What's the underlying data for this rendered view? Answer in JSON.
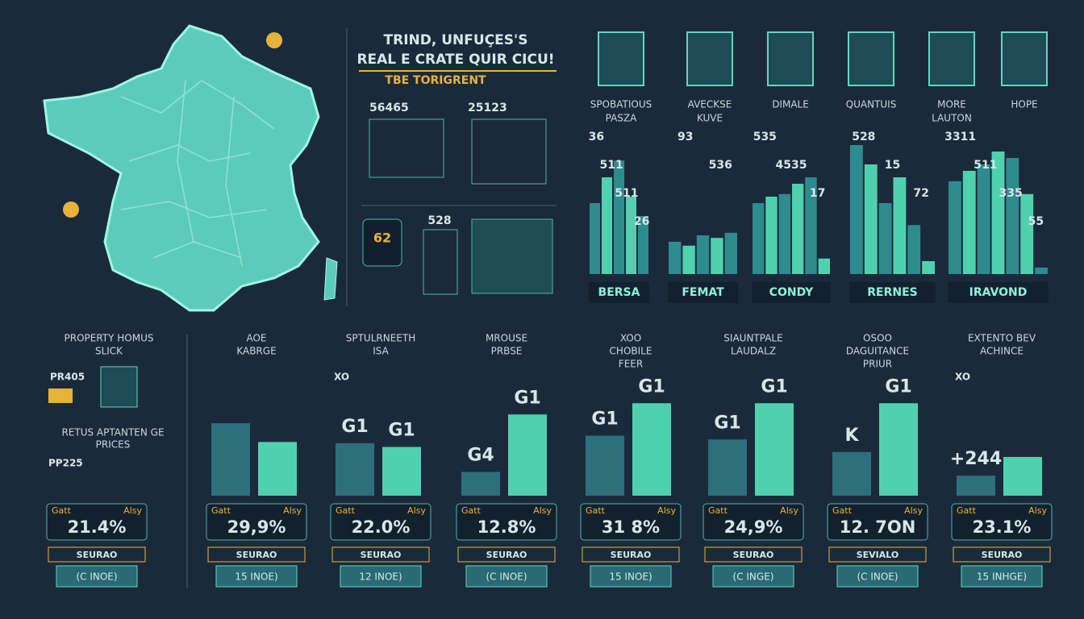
{
  "header": {
    "title_lines": [
      "TRIND, UNFUÇES'S",
      "REAL E CRATE QUIR CICU!"
    ],
    "subtitle": "TBE TORIGRENT"
  },
  "stats": [
    "56465",
    "25123",
    "62",
    "528"
  ],
  "icon_labels": [
    [
      "SPOBATIOUS",
      "PASZA"
    ],
    [
      "AVECKSE",
      "KUVE"
    ],
    [
      "DIMALE"
    ],
    [
      "QUANTUIS"
    ],
    [
      "MORE",
      "LAUTON"
    ],
    [
      "HOPE"
    ]
  ],
  "top_charts": [
    {
      "name": "BERSA",
      "values": [
        55,
        75,
        88,
        60,
        45
      ],
      "annotations": [
        "36",
        "511",
        "511",
        "26"
      ]
    },
    {
      "name": "FEMAT",
      "values": [
        25,
        22,
        30,
        28,
        32
      ],
      "annotations": [
        "93",
        "536"
      ]
    },
    {
      "name": "CONDY",
      "values": [
        55,
        60,
        62,
        70,
        75,
        12
      ],
      "annotations": [
        "535",
        "4535",
        "17"
      ]
    },
    {
      "name": "RERNES",
      "values": [
        100,
        85,
        55,
        75,
        38,
        10
      ],
      "annotations": [
        "528",
        "15",
        "72"
      ]
    },
    {
      "name": "IRAVOND",
      "values": [
        72,
        80,
        85,
        95,
        90,
        62,
        5
      ],
      "annotations": [
        "3311",
        "511",
        "335",
        "55"
      ]
    }
  ],
  "panels": [
    {
      "title": [
        "PROPERTY HOMUS",
        "SLICK"
      ],
      "tag": "PR405",
      "sub": [
        "RETUS APTANTEN GE",
        "PRICES"
      ],
      "sub_tag": "PP225",
      "bar_labels": [],
      "bars": [],
      "left": "Gatt",
      "right": "Alsy",
      "rate": "21.4%",
      "caption": "SEURAO",
      "button": "(C INOE)"
    },
    {
      "title": [
        "AOE",
        "KABRGE"
      ],
      "bar_labels": [],
      "bars": [
        58,
        43
      ],
      "left": "Gatt",
      "right": "Alsy",
      "rate": "29,9%",
      "caption": "SEURAO",
      "button": "15 INOE)"
    },
    {
      "title": [
        "SPTULRNEETH",
        "ISA"
      ],
      "tag": "XO",
      "bar_labels": [
        "G1",
        "G1"
      ],
      "bars": [
        42,
        39
      ],
      "left": "Gatt",
      "right": "Alsy",
      "rate": "22.0%",
      "caption": "SEURAO",
      "button": "12 INOE)"
    },
    {
      "title": [
        "MROUSE",
        "PRBSE"
      ],
      "bar_labels": [
        "G4",
        "G1"
      ],
      "bars": [
        19,
        65
      ],
      "left": "Gatt",
      "right": "Alsy",
      "rate": "12.8%",
      "caption": "SEURAO",
      "button": "(C INOE)"
    },
    {
      "title": [
        "XOO",
        "CHOBILE",
        "FEER"
      ],
      "bar_labels": [
        "G1",
        "G1"
      ],
      "bars": [
        48,
        74
      ],
      "left": "Gatt",
      "right": "Alsy",
      "rate": "31 8%",
      "caption": "SEURAO",
      "button": "15 INOE)"
    },
    {
      "title": [
        "SIAUNTPALE",
        "LAUDALZ"
      ],
      "bar_labels": [
        "G1",
        "G1"
      ],
      "bars": [
        45,
        74
      ],
      "left": "Gatt",
      "right": "Alsy",
      "rate": "24,9%",
      "caption": "SEURAO",
      "button": "(C INGE)"
    },
    {
      "title": [
        "OSOO",
        "DAGUITANCE",
        "PRIUR"
      ],
      "bar_labels": [
        "K",
        "G1"
      ],
      "bars": [
        35,
        74
      ],
      "left": "Gatt",
      "right": "Alsy",
      "rate": "12. 7ON",
      "caption": "SEVIALO",
      "button": "(C INOE)"
    },
    {
      "title": [
        "EXTENTO BEV",
        "ACHINCE"
      ],
      "tag": "XO",
      "bar_labels": [
        "+244"
      ],
      "bars": [
        16,
        31
      ],
      "left": "Gatt",
      "right": "Alsy",
      "rate": "23.1%",
      "caption": "SEURAO",
      "button": "15 INHGE)"
    }
  ]
}
